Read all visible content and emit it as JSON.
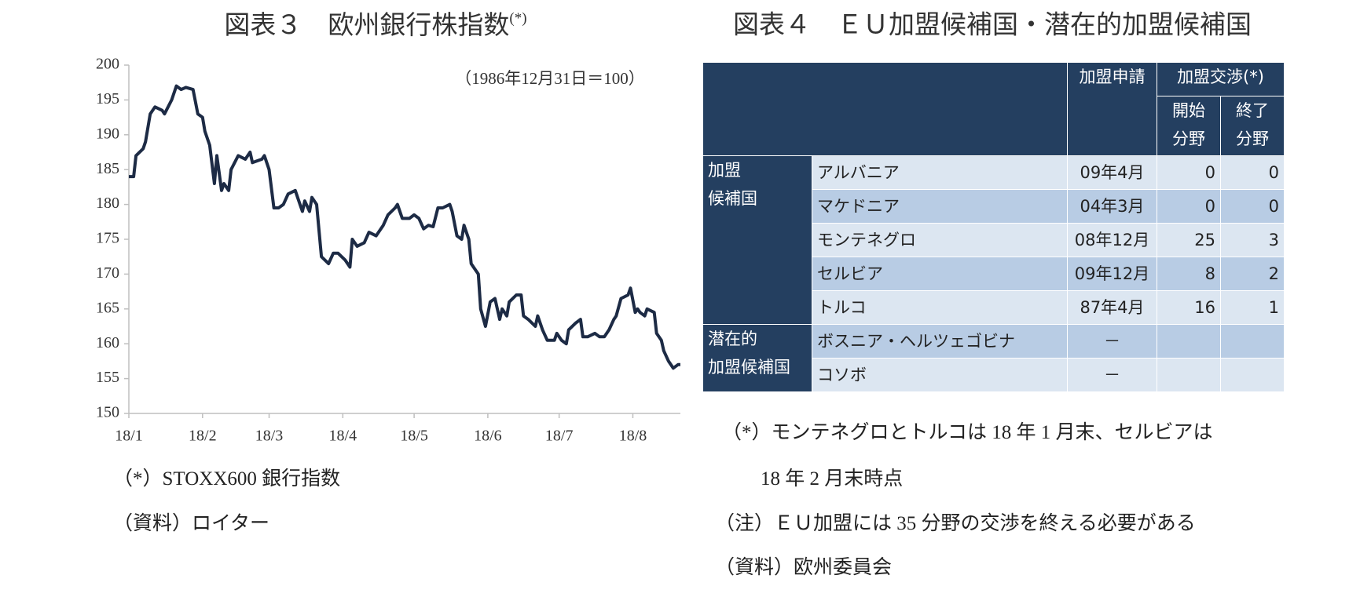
{
  "chart_data": {
    "type": "line",
    "title": "図表３　欧州銀行株指数",
    "title_note": "(*)",
    "annotation": "（1986年12月31日＝100）",
    "x": [
      0,
      2,
      3,
      6,
      7,
      9,
      11,
      14,
      15,
      18,
      20,
      22,
      24,
      27,
      29,
      31,
      32,
      34,
      36,
      37,
      39,
      40,
      42,
      43,
      46,
      49,
      51,
      52,
      56,
      57,
      59,
      61,
      63,
      65,
      67,
      70,
      71,
      73,
      74,
      76,
      77,
      79,
      81,
      84,
      86,
      88,
      91,
      93,
      94,
      96,
      99,
      101,
      104,
      107,
      109,
      112,
      113,
      115,
      118,
      120,
      122,
      124,
      126,
      128,
      130,
      132,
      135,
      136,
      138,
      140,
      141,
      143,
      144,
      147,
      148,
      150,
      152,
      154,
      156,
      157,
      159,
      160,
      163,
      165,
      166,
      168,
      171,
      172,
      174,
      176,
      179,
      180,
      182,
      184,
      185,
      188,
      190,
      191,
      193,
      196,
      198,
      200,
      202,
      204,
      205,
      207,
      210,
      211,
      213,
      214,
      215,
      217,
      218,
      221,
      222,
      224,
      225,
      227,
      229,
      231,
      232
    ],
    "series": [
      {
        "color": "#1d2b45",
        "values": [
          184,
          184,
          187,
          188,
          189,
          193,
          194,
          193.5,
          193,
          195,
          197,
          196.5,
          196.8,
          196.5,
          193,
          192.5,
          190.5,
          188.5,
          183,
          187,
          182,
          183,
          182,
          185,
          187,
          186.5,
          187.5,
          186,
          186.5,
          187,
          185,
          179.5,
          179.5,
          180,
          181.5,
          182,
          181,
          179,
          180.5,
          179,
          181,
          180,
          172.5,
          171.5,
          173,
          173,
          172,
          171,
          175,
          174,
          174.5,
          176,
          175.5,
          177,
          178.5,
          179.5,
          180,
          178,
          178,
          178.5,
          178,
          176.5,
          177,
          176.8,
          179.5,
          179.5,
          180,
          179,
          175.5,
          175,
          177,
          175,
          171.5,
          170,
          165,
          162.5,
          166,
          166.5,
          163.5,
          165,
          164,
          166,
          167,
          167,
          164,
          163.5,
          162.5,
          164,
          162,
          160.5,
          160.5,
          161.5,
          160.5,
          160,
          162,
          163,
          163.5,
          161,
          161,
          161.5,
          161,
          161,
          162,
          163.5,
          164,
          166.5,
          167,
          168,
          164.5,
          165,
          164.5,
          164,
          165,
          164.5,
          161.5,
          160.5,
          159,
          157.5,
          156.5,
          157,
          157
        ]
      }
    ],
    "xlim": [
      0,
      232
    ],
    "xticks": [
      {
        "value": 0,
        "label": "18/1"
      },
      {
        "value": 31,
        "label": "18/2"
      },
      {
        "value": 59,
        "label": "18/3"
      },
      {
        "value": 90,
        "label": "18/4"
      },
      {
        "value": 120,
        "label": "18/5"
      },
      {
        "value": 151,
        "label": "18/6"
      },
      {
        "value": 181,
        "label": "18/7"
      },
      {
        "value": 212,
        "label": "18/8"
      }
    ],
    "ylim": [
      150,
      200
    ],
    "yticks": [
      150,
      155,
      160,
      165,
      170,
      175,
      180,
      185,
      190,
      195,
      200
    ]
  },
  "chart_notes": [
    "（*）STOXX600 銀行指数",
    "（資料）ロイター"
  ],
  "table": {
    "title": "図表４　ＥＵ加盟候補国・潜在的加盟候補国",
    "header": {
      "apply": "加盟申請",
      "negotiation": "加盟交渉(*)",
      "opened": [
        "開始",
        "分野"
      ],
      "closed": [
        "終了",
        "分野"
      ]
    },
    "groups": [
      {
        "label": [
          "加盟",
          "候補国"
        ],
        "rows": [
          [
            "アルバニア",
            "09年4月",
            0,
            0
          ],
          [
            "マケドニア",
            "04年3月",
            0,
            0
          ],
          [
            "モンテネグロ",
            "08年12月",
            25,
            3
          ],
          [
            "セルビア",
            "09年12月",
            8,
            2
          ],
          [
            "トルコ",
            "87年4月",
            16,
            1
          ]
        ]
      },
      {
        "label": [
          "潜在的",
          "加盟候補国"
        ],
        "rows": [
          [
            "ボスニア・ヘルツェゴビナ",
            "－"
          ],
          [
            "コソボ",
            "－"
          ]
        ]
      }
    ]
  },
  "table_notes": {
    "asterisk": [
      "（*）モンテネグロとトルコは 18 年 1 月末、セルビアは",
      "18 年 2 月末時点"
    ],
    "note": "（注）ＥＵ加盟には 35 分野の交渉を終える必要がある",
    "source": "（資料）欧州委員会"
  }
}
